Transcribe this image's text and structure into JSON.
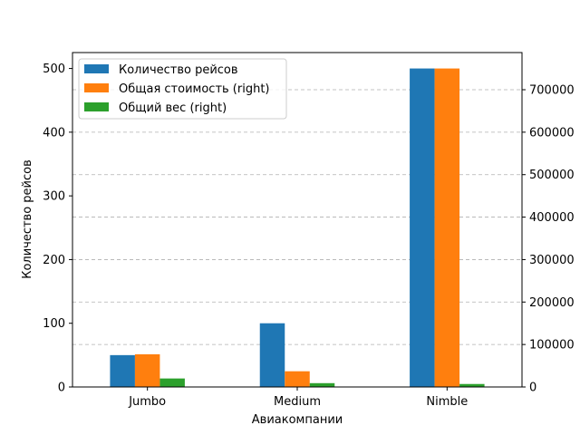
{
  "chart_data": {
    "type": "bar",
    "categories": [
      "Jumbo",
      "Medium",
      "Nimble"
    ],
    "xlabel": "Авиакомпании",
    "ylabel": "Количество рейсов",
    "ylim": [
      0,
      525
    ],
    "y2lim": [
      0,
      787500
    ],
    "yticks": [
      0,
      100,
      200,
      300,
      400,
      500
    ],
    "y2ticks": [
      0,
      100000,
      200000,
      300000,
      400000,
      500000,
      600000,
      700000
    ],
    "y_tick_labels": [
      "0",
      "100",
      "200",
      "300",
      "400",
      "500"
    ],
    "y2_tick_labels": [
      "0",
      "100000",
      "200000",
      "300000",
      "400000",
      "500000",
      "600000",
      "700000"
    ],
    "grid": "dashed, horizontal, right axis",
    "legend_position": "top-left",
    "series": [
      {
        "name": "Количество рейсов",
        "axis": "left",
        "color": "#1f77b4",
        "values": [
          50,
          100,
          500
        ]
      },
      {
        "name": "Общая стоимость (right)",
        "axis": "right",
        "color": "#ff7f0e",
        "values": [
          77000,
          37000,
          750000
        ]
      },
      {
        "name": "Общий вес (right)",
        "axis": "right",
        "color": "#2ca02c",
        "values": [
          20000,
          9000,
          7000
        ]
      }
    ]
  }
}
